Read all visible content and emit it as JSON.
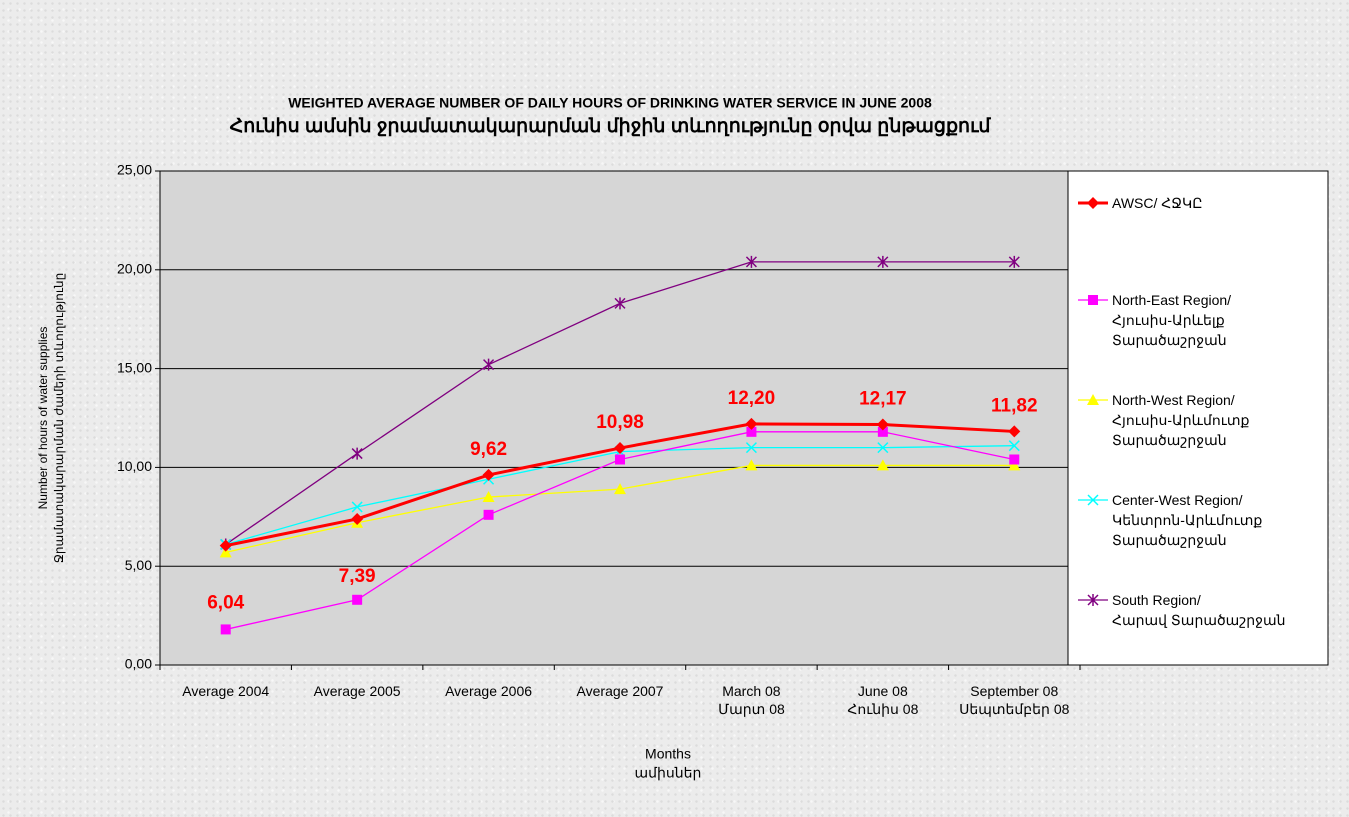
{
  "chart_data": {
    "type": "line",
    "title": "WEIGHTED AVERAGE NUMBER OF DAILY HOURS OF DRINKING  WATER SERVICE IN JUNE 2008",
    "subtitle": "Հունիս ամսին ջրամատակարարման միջին տևողությունը օրվա ընթացքում",
    "y_label": [
      "Number of hours of water supplies",
      "Ջրամատակարարման ժամերի տևողությունը"
    ],
    "x_label": [
      "Months",
      "ամիսներ"
    ],
    "categories": [
      "Average 2004",
      "Average 2005",
      "Average 2006",
      "Average 2007",
      "March 08\nՄարտ 08",
      "June 08\nՀունիս 08",
      "September 08\nՍեպտեմբեր 08"
    ],
    "ylim": [
      0,
      25
    ],
    "yticks": [
      {
        "value": 0,
        "label": "0,00"
      },
      {
        "value": 5,
        "label": "5,00"
      },
      {
        "value": 10,
        "label": "10,00"
      },
      {
        "value": 15,
        "label": "15,00"
      },
      {
        "value": 20,
        "label": "20,00"
      },
      {
        "value": 25,
        "label": "25,00"
      }
    ],
    "grid": true,
    "legend": "right",
    "series": [
      {
        "name": "AWSC/ ՀՋԿԸ",
        "color": "#ff0000",
        "marker": "diamond",
        "width": 3,
        "values": [
          6.04,
          7.39,
          9.62,
          10.98,
          12.2,
          12.17,
          11.82
        ],
        "value_labels": [
          "6,04",
          "7,39",
          "9,62",
          "10,98",
          "12,20",
          "12,17",
          "11,82"
        ],
        "value_label_positions": [
          "below",
          "below",
          "above",
          "above",
          "above",
          "above",
          "above"
        ]
      },
      {
        "name": "North-East Region/\nՀյուսիս-Արևելք\nՏարածաշրջան",
        "color": "#ff00ff",
        "marker": "square",
        "width": 1.3,
        "values": [
          1.8,
          3.3,
          7.6,
          10.4,
          11.8,
          11.8,
          10.4
        ]
      },
      {
        "name": "North-West Region/\nՀյուսիս-Արևմուտք\nՏարածաշրջան",
        "color": "#ffff00",
        "marker": "triangle",
        "width": 1.3,
        "values": [
          5.7,
          7.2,
          8.5,
          8.9,
          10.1,
          10.1,
          10.1
        ]
      },
      {
        "name": "Center-West Region/\nԿենտրոն-Արևմուտք\nՏարածաշրջան",
        "color": "#00ffff",
        "marker": "x",
        "width": 1.3,
        "values": [
          6.1,
          8.0,
          9.4,
          10.8,
          11.0,
          11.0,
          11.1
        ]
      },
      {
        "name": "South Region/\nՀարավ Տարածաշրջան",
        "color": "#800080",
        "marker": "star",
        "width": 1.3,
        "values": [
          6.1,
          10.7,
          15.2,
          18.3,
          20.4,
          20.4,
          20.4
        ]
      }
    ]
  }
}
